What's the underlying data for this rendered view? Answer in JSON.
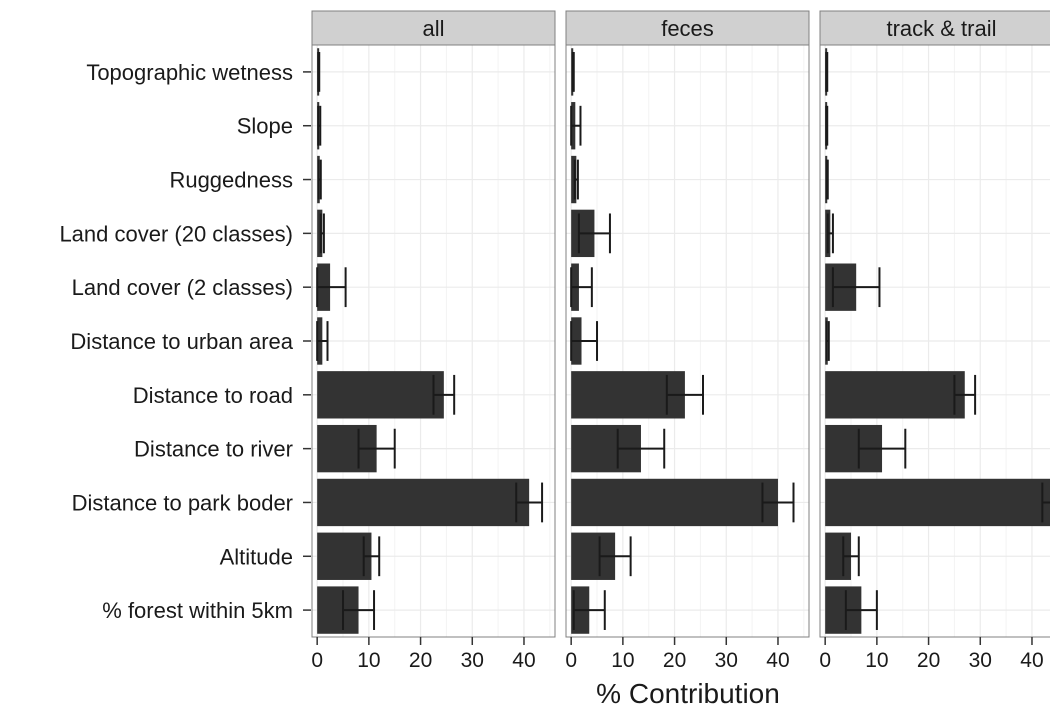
{
  "chart_data": {
    "type": "bar",
    "orientation": "horizontal",
    "xlabel": "% Contribution",
    "ylabel": "",
    "xlim": [
      -1,
      46
    ],
    "x_ticks": [
      0,
      10,
      20,
      30,
      40
    ],
    "grid": true,
    "colors": {
      "bar": "#333333",
      "panel_bg": "#ffffff",
      "grid": "#ebebeb",
      "strip_bg": "#d0d0d0",
      "frame": "#808080"
    },
    "categories": [
      "Topographic wetness",
      "Slope",
      "Ruggedness",
      "Land cover (20 classes)",
      "Land cover (2 classes)",
      "Distance to urban area",
      "Distance to road",
      "Distance to river",
      "Distance to park boder",
      "Altitude",
      "% forest within 5km"
    ],
    "panels": [
      {
        "facet": "all",
        "values": [
          0.3,
          0.4,
          0.5,
          1.0,
          2.5,
          1.0,
          24.5,
          11.5,
          41.0,
          10.5,
          8.0
        ],
        "error": [
          0.1,
          0.2,
          0.2,
          0.3,
          3.0,
          1.0,
          2.0,
          3.5,
          2.5,
          1.5,
          3.0
        ]
      },
      {
        "facet": "feces",
        "values": [
          0.4,
          0.8,
          1.0,
          4.5,
          1.5,
          2.0,
          22.0,
          13.5,
          40.0,
          8.5,
          3.5
        ],
        "error": [
          0.1,
          1.0,
          0.3,
          3.0,
          2.5,
          3.0,
          3.5,
          4.5,
          3.0,
          3.0,
          3.0
        ]
      },
      {
        "facet": "track & trail",
        "values": [
          0.3,
          0.3,
          0.4,
          1.0,
          6.0,
          0.5,
          27.0,
          11.0,
          44.0,
          5.0,
          7.0
        ],
        "error": [
          0.1,
          0.1,
          0.1,
          0.5,
          4.5,
          0.2,
          2.0,
          4.5,
          2.0,
          1.5,
          3.0
        ]
      }
    ]
  }
}
